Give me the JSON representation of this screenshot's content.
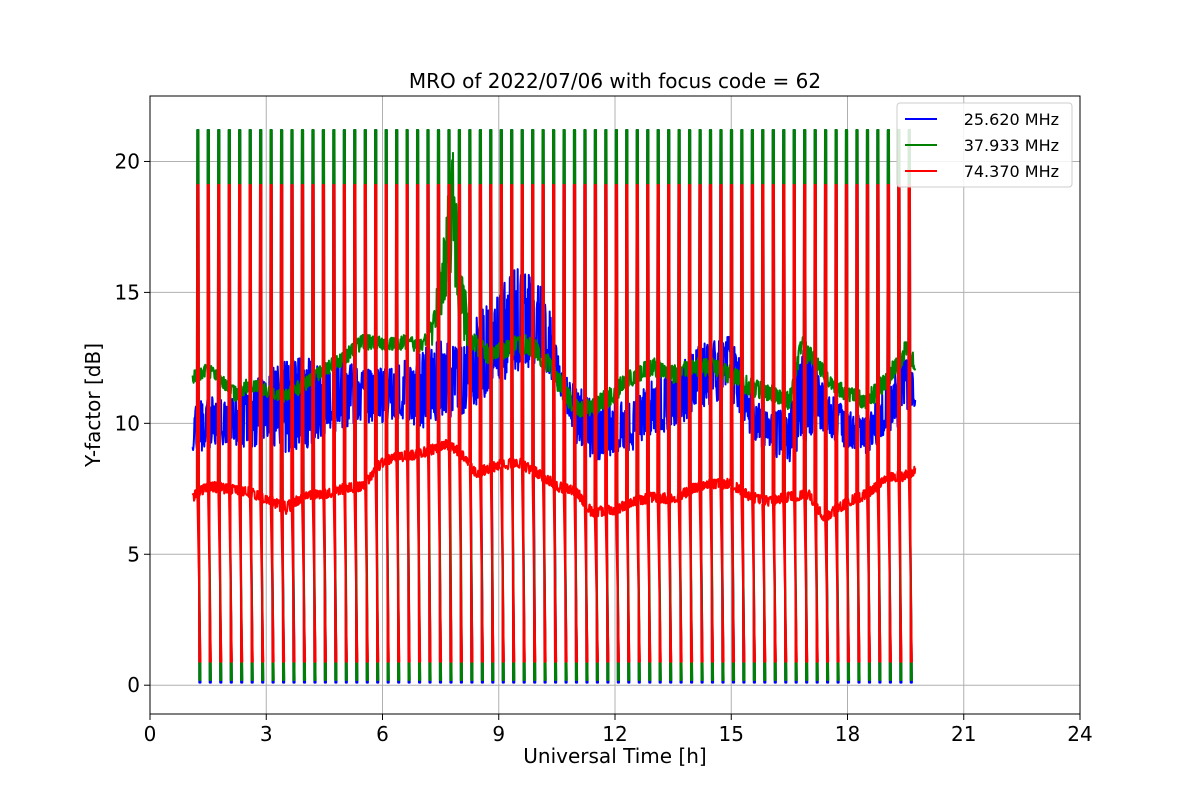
{
  "chart_data": {
    "type": "line",
    "title": "MRO of 2022/07/06 with focus code = 62",
    "xlabel": "Universal Time [h]",
    "ylabel": "Y-factor [dB]",
    "xlim": [
      0,
      24
    ],
    "ylim": [
      -1.1,
      22.5
    ],
    "xticks": [
      "0",
      "3",
      "6",
      "9",
      "12",
      "15",
      "18",
      "21",
      "24"
    ],
    "yticks": [
      "0",
      "5",
      "10",
      "15",
      "20"
    ],
    "grid": true,
    "legend_position": "top-right",
    "time_range": [
      1.1,
      19.75
    ],
    "calibration_period_h": 0.27,
    "series": [
      {
        "name": "25.620 MHz",
        "color": "#0000ff",
        "calibration_high": 21.2,
        "calibration_low": 0.1,
        "envelope": [
          [
            1.1,
            8.8,
            10.6
          ],
          [
            1.5,
            9.0,
            11.2
          ],
          [
            2.0,
            9.2,
            10.8
          ],
          [
            2.5,
            9.0,
            11.5
          ],
          [
            3.0,
            9.2,
            12.0
          ],
          [
            3.5,
            8.8,
            12.5
          ],
          [
            4.0,
            9.0,
            12.8
          ],
          [
            4.5,
            9.5,
            12.3
          ],
          [
            5.0,
            9.8,
            12.5
          ],
          [
            5.5,
            10.0,
            12.0
          ],
          [
            6.0,
            10.0,
            12.2
          ],
          [
            6.5,
            10.2,
            12.5
          ],
          [
            7.0,
            9.8,
            12.8
          ],
          [
            7.5,
            10.0,
            13.2
          ],
          [
            8.0,
            10.2,
            13.0
          ],
          [
            8.5,
            10.8,
            14.2
          ],
          [
            9.0,
            11.5,
            15.5
          ],
          [
            9.5,
            12.0,
            16.0
          ],
          [
            10.0,
            12.2,
            15.5
          ],
          [
            10.3,
            11.8,
            14.5
          ],
          [
            10.6,
            11.0,
            12.0
          ],
          [
            11.0,
            9.2,
            11.5
          ],
          [
            11.5,
            8.5,
            10.8
          ],
          [
            12.0,
            8.8,
            10.8
          ],
          [
            12.5,
            9.0,
            11.0
          ],
          [
            13.0,
            9.5,
            11.8
          ],
          [
            13.5,
            9.8,
            12.0
          ],
          [
            14.0,
            10.2,
            12.8
          ],
          [
            14.5,
            10.8,
            13.5
          ],
          [
            15.0,
            10.8,
            13.5
          ],
          [
            15.3,
            10.2,
            12.0
          ],
          [
            15.6,
            9.2,
            11.0
          ],
          [
            16.0,
            8.8,
            10.5
          ],
          [
            16.5,
            8.5,
            10.5
          ],
          [
            16.8,
            9.0,
            12.8
          ],
          [
            17.0,
            9.5,
            13.0
          ],
          [
            17.5,
            9.5,
            11.2
          ],
          [
            18.0,
            9.0,
            10.5
          ],
          [
            18.5,
            8.8,
            10.2
          ],
          [
            19.0,
            9.5,
            11.5
          ],
          [
            19.5,
            10.0,
            12.5
          ],
          [
            19.75,
            10.5,
            12.0
          ]
        ]
      },
      {
        "name": "37.933 MHz",
        "color": "#008000",
        "calibration_high": 21.2,
        "calibration_low": 0.2,
        "envelope": [
          [
            1.1,
            11.5,
            12.0
          ],
          [
            1.5,
            11.8,
            12.3
          ],
          [
            1.9,
            11.3,
            11.8
          ],
          [
            2.2,
            10.8,
            11.4
          ],
          [
            2.6,
            11.2,
            11.8
          ],
          [
            3.0,
            11.0,
            11.5
          ],
          [
            3.5,
            10.8,
            11.3
          ],
          [
            4.0,
            11.2,
            11.8
          ],
          [
            4.5,
            11.8,
            12.3
          ],
          [
            5.0,
            12.2,
            12.8
          ],
          [
            5.5,
            12.8,
            13.4
          ],
          [
            6.0,
            12.8,
            13.3
          ],
          [
            6.5,
            12.8,
            13.4
          ],
          [
            7.0,
            12.7,
            13.2
          ],
          [
            7.3,
            13.0,
            14.0
          ],
          [
            7.6,
            14.5,
            17.5
          ],
          [
            7.8,
            16.0,
            20.8
          ],
          [
            8.0,
            13.5,
            16.5
          ],
          [
            8.3,
            12.6,
            13.5
          ],
          [
            8.8,
            12.2,
            12.9
          ],
          [
            9.3,
            12.6,
            13.3
          ],
          [
            9.8,
            12.6,
            13.5
          ],
          [
            10.2,
            12.0,
            12.8
          ],
          [
            10.6,
            11.0,
            12.0
          ],
          [
            11.0,
            10.2,
            10.9
          ],
          [
            11.5,
            10.3,
            11.0
          ],
          [
            12.0,
            10.8,
            11.6
          ],
          [
            12.5,
            11.5,
            12.2
          ],
          [
            13.0,
            11.8,
            12.5
          ],
          [
            13.5,
            11.5,
            12.2
          ],
          [
            14.0,
            11.8,
            12.5
          ],
          [
            14.5,
            11.8,
            12.5
          ],
          [
            15.0,
            11.5,
            12.2
          ],
          [
            15.5,
            11.0,
            11.8
          ],
          [
            16.0,
            10.8,
            11.5
          ],
          [
            16.5,
            10.5,
            11.2
          ],
          [
            16.8,
            12.5,
            13.4
          ],
          [
            17.2,
            12.0,
            12.6
          ],
          [
            17.6,
            11.2,
            11.8
          ],
          [
            18.0,
            10.8,
            11.4
          ],
          [
            18.5,
            10.5,
            11.2
          ],
          [
            19.0,
            11.2,
            12.0
          ],
          [
            19.5,
            12.4,
            13.2
          ],
          [
            19.75,
            12.0,
            12.6
          ]
        ]
      },
      {
        "name": "74.370 MHz",
        "color": "#ff0000",
        "calibration_high": 19.1,
        "calibration_low": 0.9,
        "envelope": [
          [
            1.1,
            7.0,
            7.4
          ],
          [
            1.5,
            7.4,
            7.8
          ],
          [
            2.0,
            7.3,
            7.7
          ],
          [
            2.5,
            7.2,
            7.6
          ],
          [
            3.0,
            6.9,
            7.3
          ],
          [
            3.5,
            6.5,
            7.0
          ],
          [
            4.0,
            7.1,
            7.4
          ],
          [
            4.5,
            7.1,
            7.5
          ],
          [
            5.0,
            7.3,
            7.7
          ],
          [
            5.5,
            7.4,
            7.8
          ],
          [
            5.9,
            8.2,
            8.6
          ],
          [
            6.3,
            8.5,
            8.9
          ],
          [
            6.8,
            8.6,
            9.0
          ],
          [
            7.3,
            8.8,
            9.2
          ],
          [
            7.7,
            9.0,
            9.4
          ],
          [
            8.0,
            8.7,
            9.1
          ],
          [
            8.4,
            7.9,
            8.3
          ],
          [
            9.0,
            8.2,
            8.6
          ],
          [
            9.5,
            8.3,
            8.7
          ],
          [
            10.0,
            7.9,
            8.3
          ],
          [
            10.5,
            7.4,
            7.8
          ],
          [
            11.0,
            7.2,
            7.6
          ],
          [
            11.4,
            6.4,
            6.8
          ],
          [
            12.0,
            6.5,
            6.9
          ],
          [
            12.5,
            6.8,
            7.2
          ],
          [
            13.0,
            7.0,
            7.4
          ],
          [
            13.5,
            6.9,
            7.3
          ],
          [
            14.0,
            7.3,
            7.7
          ],
          [
            14.5,
            7.5,
            7.9
          ],
          [
            15.0,
            7.5,
            7.9
          ],
          [
            15.5,
            7.0,
            7.4
          ],
          [
            16.0,
            6.8,
            7.2
          ],
          [
            16.5,
            7.0,
            7.4
          ],
          [
            17.0,
            7.1,
            7.5
          ],
          [
            17.4,
            6.2,
            6.6
          ],
          [
            18.0,
            6.8,
            7.2
          ],
          [
            18.5,
            7.1,
            7.5
          ],
          [
            19.0,
            7.7,
            8.1
          ],
          [
            19.5,
            7.8,
            8.2
          ],
          [
            19.75,
            8.0,
            8.4
          ]
        ]
      }
    ]
  }
}
